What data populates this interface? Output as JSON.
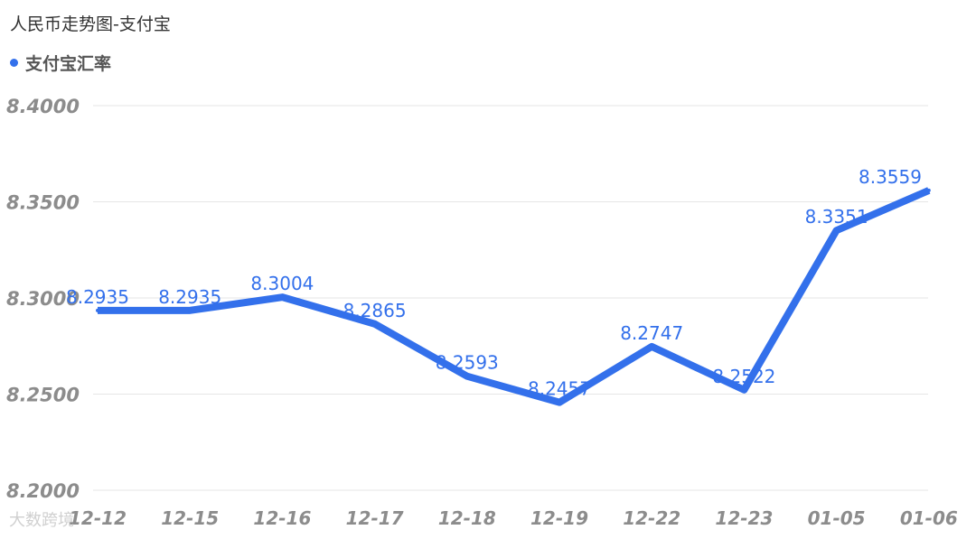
{
  "chart_data": {
    "type": "line",
    "title": "人民币走势图-支付宝",
    "categories": [
      "12-12",
      "12-15",
      "12-16",
      "12-17",
      "12-18",
      "12-19",
      "12-22",
      "12-23",
      "01-05",
      "01-06"
    ],
    "series": [
      {
        "name": "支付宝汇率",
        "values": [
          8.2935,
          8.2935,
          8.3004,
          8.2865,
          8.2593,
          8.2457,
          8.2747,
          8.2522,
          8.3351,
          8.3559
        ],
        "labels": [
          "8.2935",
          "8.2935",
          "8.3004",
          "8.2865",
          "8.2593",
          "8.2457",
          "8.2747",
          "8.2522",
          "8.3351",
          "8.3559"
        ]
      }
    ],
    "y_ticks": [
      "8.2000",
      "8.2500",
      "8.3000",
      "8.3500",
      "8.4000"
    ],
    "ylim": [
      8.2,
      8.4
    ],
    "grid": true,
    "legend_position": "top-left",
    "colors": {
      "line": "#3370eb",
      "label": "#3370eb",
      "axis_text": "#8c8c8c",
      "grid": "#e6e6e6"
    }
  },
  "watermark": "大数跨境"
}
